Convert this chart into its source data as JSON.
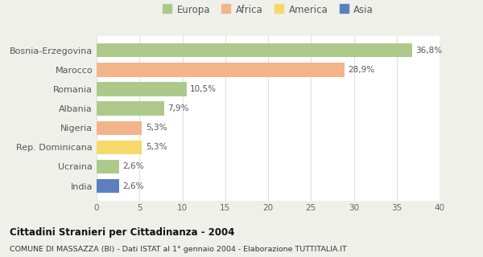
{
  "categories": [
    "Bosnia-Erzegovina",
    "Marocco",
    "Romania",
    "Albania",
    "Nigeria",
    "Rep. Dominicana",
    "Ucraina",
    "India"
  ],
  "values": [
    36.8,
    28.9,
    10.5,
    7.9,
    5.3,
    5.3,
    2.6,
    2.6
  ],
  "labels": [
    "36,8%",
    "28,9%",
    "10,5%",
    "7,9%",
    "5,3%",
    "5,3%",
    "2,6%",
    "2,6%"
  ],
  "colors": [
    "#adc98a",
    "#f2b48a",
    "#adc98a",
    "#adc98a",
    "#f2b48a",
    "#f5d96b",
    "#adc98a",
    "#5b7fc0"
  ],
  "legend": [
    {
      "label": "Europa",
      "color": "#adc98a"
    },
    {
      "label": "Africa",
      "color": "#f2b48a"
    },
    {
      "label": "America",
      "color": "#f5d96b"
    },
    {
      "label": "Asia",
      "color": "#5b7fc0"
    }
  ],
  "xlim": [
    0,
    40
  ],
  "xticks": [
    0,
    5,
    10,
    15,
    20,
    25,
    30,
    35,
    40
  ],
  "title": "Cittadini Stranieri per Cittadinanza - 2004",
  "subtitle": "COMUNE DI MASSAZZA (BI) - Dati ISTAT al 1° gennaio 2004 - Elaborazione TUTTITALIA.IT",
  "outer_bg": "#f0f0eb",
  "plot_bg": "#ffffff",
  "grid_color": "#e0e0e0"
}
